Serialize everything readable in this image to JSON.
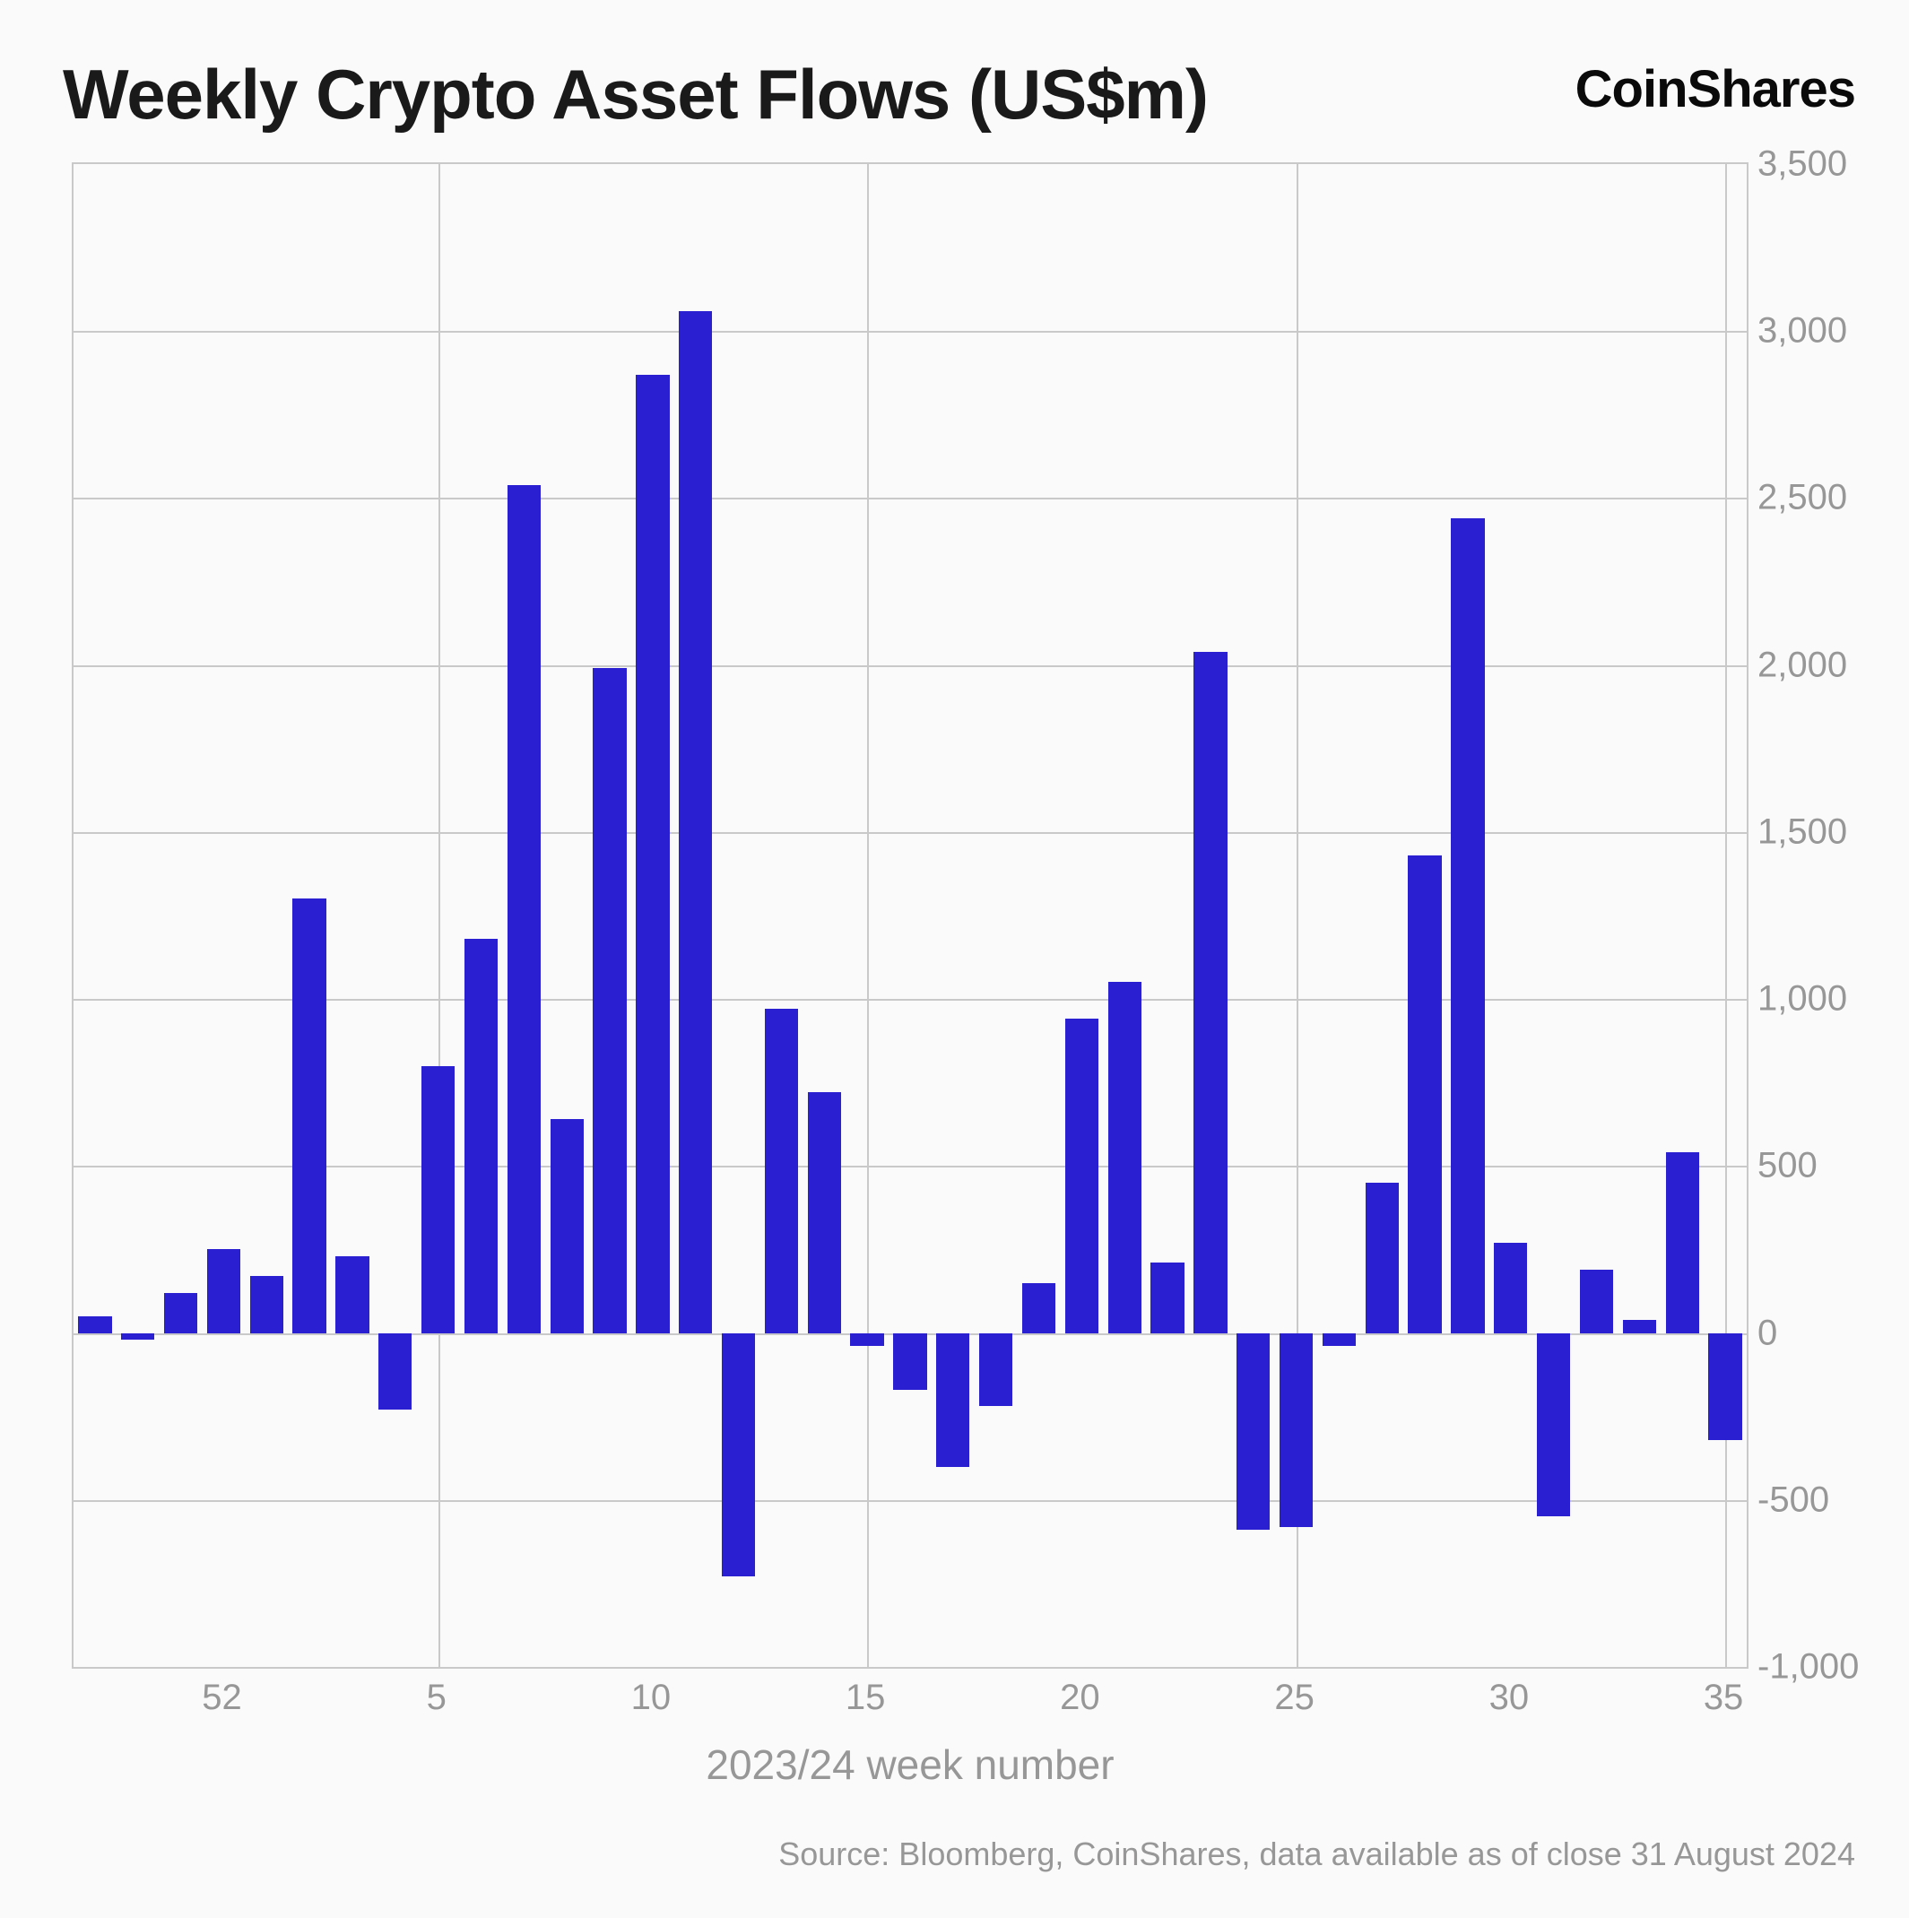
{
  "header": {
    "title": "Weekly Crypto Asset Flows (US$m)",
    "brand": "CoinShares"
  },
  "chart": {
    "type": "bar",
    "bar_color": "#2a20d1",
    "background_color": "#fbfafa",
    "grid_color": "#c9c9c9",
    "y": {
      "min": -1000,
      "max": 3500,
      "ticks": [
        -1000,
        -500,
        0,
        500,
        1000,
        1500,
        2000,
        2500,
        3000,
        3500
      ],
      "labels": [
        "-1,000",
        "-500",
        "0",
        "500",
        "1,000",
        "1,500",
        "2,000",
        "2,500",
        "3,000",
        "3,500"
      ],
      "label_color": "#979797",
      "label_fontsize": 40
    },
    "x": {
      "title": "2023/24 week number",
      "title_fontsize": 46,
      "title_color": "#979797",
      "ticks_at_values": [
        52,
        5,
        10,
        15,
        20,
        25,
        30,
        35
      ],
      "label_color": "#979797",
      "label_fontsize": 40,
      "vgrid_at_values": [
        5,
        15,
        25,
        35
      ]
    },
    "categories": [
      49,
      50,
      51,
      52,
      1,
      2,
      3,
      4,
      5,
      6,
      7,
      8,
      9,
      10,
      11,
      12,
      13,
      14,
      15,
      16,
      17,
      18,
      19,
      20,
      21,
      22,
      23,
      24,
      25,
      26,
      27,
      28,
      29,
      30,
      31,
      32,
      33,
      34,
      35
    ],
    "values": [
      50,
      -20,
      120,
      250,
      170,
      1300,
      230,
      -230,
      800,
      1180,
      2540,
      640,
      1990,
      2870,
      3060,
      -730,
      970,
      720,
      -40,
      -170,
      -400,
      -220,
      150,
      940,
      1050,
      210,
      2040,
      -590,
      -580,
      -40,
      450,
      1430,
      2440,
      270,
      -550,
      190,
      40,
      540,
      -320
    ],
    "bar_width_ratio": 0.78
  },
  "footer": {
    "source": "Source: Bloomberg, CoinShares, data available as of close 31 August 2024"
  }
}
